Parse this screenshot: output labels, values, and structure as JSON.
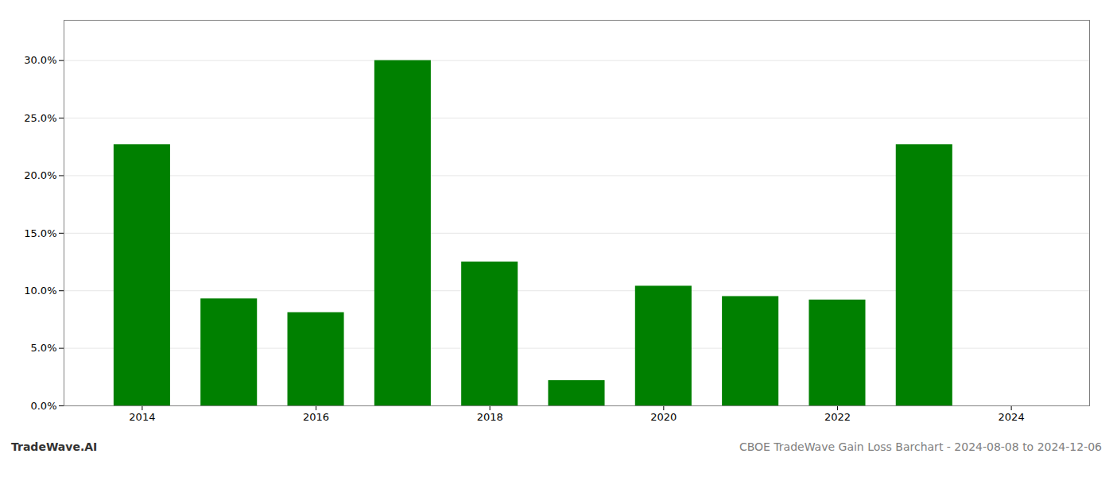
{
  "chart_data": {
    "type": "bar",
    "x": [
      2014,
      2015,
      2016,
      2017,
      2018,
      2019,
      2020,
      2021,
      2022,
      2023,
      2024
    ],
    "values": [
      0.227,
      0.093,
      0.081,
      0.3,
      0.125,
      0.022,
      0.104,
      0.095,
      0.092,
      0.227,
      0.0
    ],
    "color": "#008000",
    "xlim": [
      2013.1,
      2024.9
    ],
    "xticks": [
      2014,
      2016,
      2018,
      2020,
      2022,
      2024
    ],
    "ylim": [
      0.0,
      0.335
    ],
    "yticks": [
      {
        "value": 0.0,
        "label": "0.0%"
      },
      {
        "value": 0.05,
        "label": "5.0%"
      },
      {
        "value": 0.1,
        "label": "10.0%"
      },
      {
        "value": 0.15,
        "label": "15.0%"
      },
      {
        "value": 0.2,
        "label": "20.0%"
      },
      {
        "value": 0.25,
        "label": "25.0%"
      },
      {
        "value": 0.3,
        "label": "30.0%"
      }
    ],
    "grid": true,
    "annotations": [
      "TradeWave.AI",
      "CBOE TradeWave Gain Loss Barchart - 2024-08-08 to 2024-12-06"
    ]
  }
}
